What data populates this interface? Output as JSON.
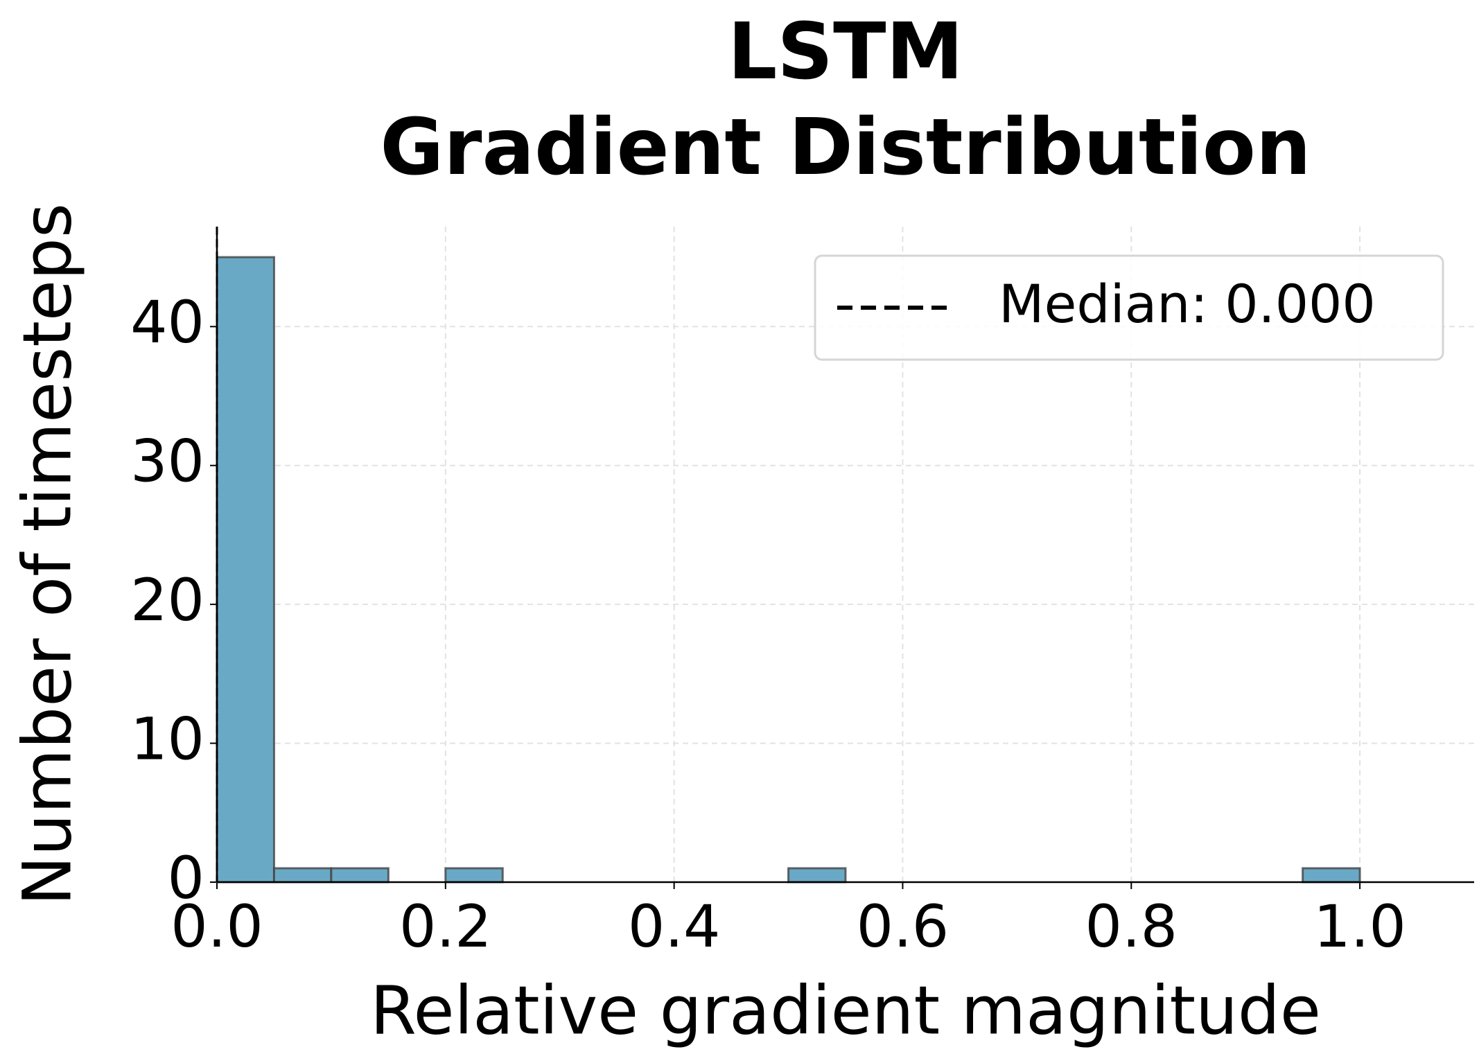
{
  "chart_data": {
    "type": "histogram",
    "title": [
      "LSTM",
      "Gradient Distribution"
    ],
    "x_label": "Relative gradient magnitude",
    "y_label": "Number of timesteps",
    "bins": [
      0,
      0.05,
      0.1,
      0.15,
      0.2,
      0.25,
      0.3,
      0.35,
      0.4,
      0.45,
      0.5,
      0.55,
      0.6,
      0.65,
      0.7,
      0.75,
      0.8,
      0.85,
      0.9,
      0.95,
      1.0
    ],
    "values": [
      45,
      1,
      1,
      0,
      1,
      0,
      0,
      0,
      0,
      0,
      1,
      0,
      0,
      0,
      0,
      0,
      0,
      0,
      0,
      1
    ],
    "color": "#6aa9c6",
    "median": {
      "value": 0,
      "label": "Median: 0.000"
    },
    "xlim": [
      0,
      1.1
    ],
    "ylim": [
      0,
      47.2
    ],
    "xticks": [
      {
        "value": 0,
        "label": "0.0"
      },
      0.2,
      0.4,
      0.6,
      0.8,
      {
        "value": 1,
        "label": "1.0"
      }
    ],
    "yticks": [
      0,
      10,
      20,
      30,
      40
    ],
    "grid": true,
    "legend": "upper right"
  }
}
